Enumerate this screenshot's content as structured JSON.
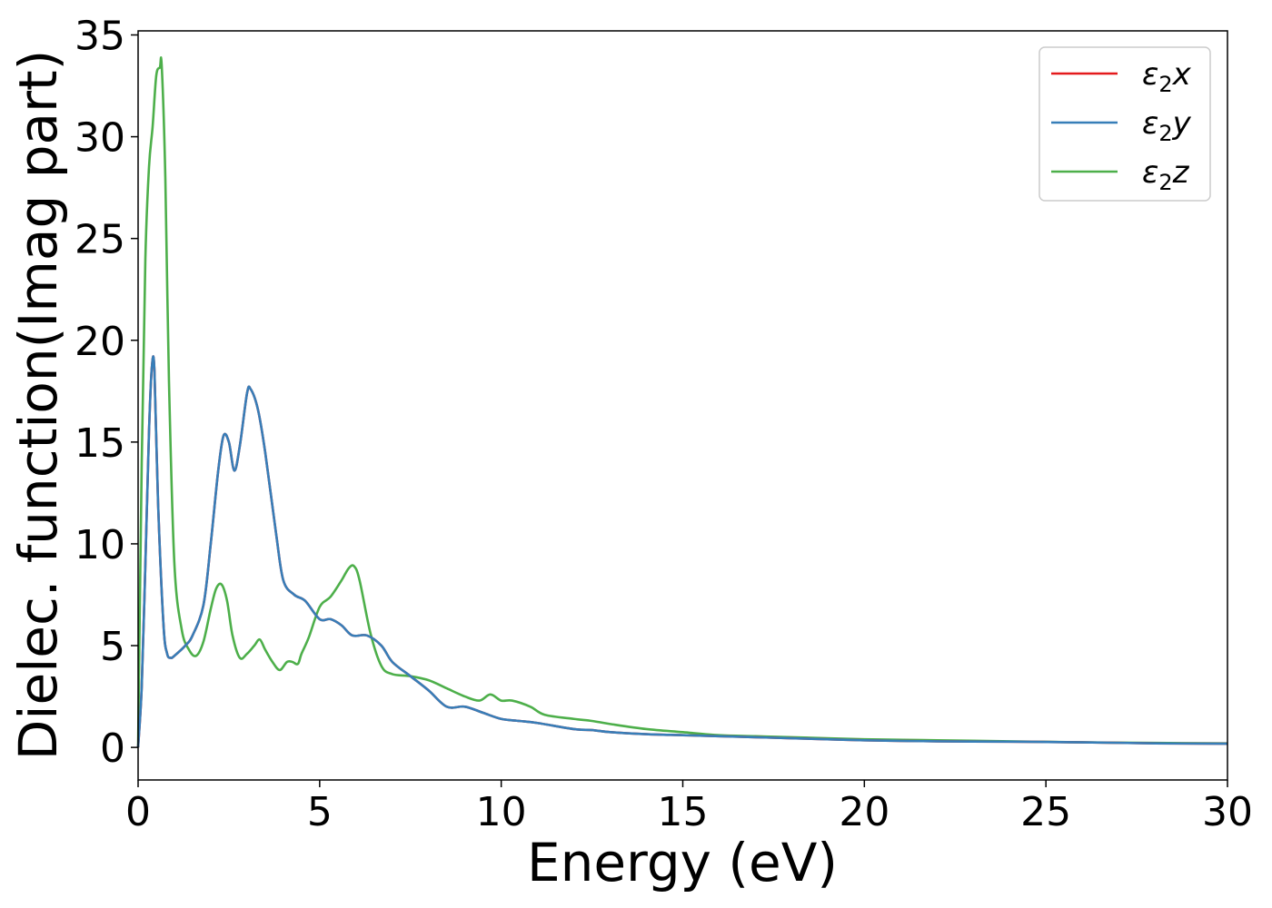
{
  "chart_data": {
    "type": "line",
    "xlabel": "Energy (eV)",
    "ylabel": "Dielec. function(Imag part)",
    "xlim": [
      0,
      30
    ],
    "ylim": [
      -1.6,
      35.2
    ],
    "xticks": [
      0,
      5,
      10,
      15,
      20,
      25,
      30
    ],
    "yticks": [
      0,
      5,
      10,
      15,
      20,
      25,
      30,
      35
    ],
    "grid": false,
    "legend_position": "top-right",
    "series": [
      {
        "name": "ε₂x",
        "legend_base": "ε",
        "legend_sub": "2",
        "legend_var": "x",
        "color": "#e41a1c",
        "x": [
          0,
          0.1,
          0.2,
          0.3,
          0.38,
          0.45,
          0.55,
          0.7,
          0.8,
          0.9,
          1.0,
          1.3,
          1.5,
          1.8,
          2.0,
          2.2,
          2.35,
          2.5,
          2.65,
          2.8,
          3.0,
          3.1,
          3.3,
          3.5,
          3.8,
          4.0,
          4.3,
          4.6,
          5.0,
          5.3,
          5.6,
          5.9,
          6.3,
          6.7,
          7.0,
          7.5,
          8.0,
          8.5,
          9.0,
          9.5,
          10.0,
          10.5,
          11.0,
          12.0,
          12.5,
          13.0,
          14.0,
          15.0,
          16.0,
          17.0,
          18.0,
          20.0,
          22.0,
          24.0,
          26.0,
          28.0,
          30.0
        ],
        "values": [
          0,
          3.0,
          9.0,
          15.5,
          18.7,
          18.5,
          12.0,
          6.0,
          4.6,
          4.4,
          4.5,
          5.0,
          5.5,
          7.0,
          10.0,
          13.5,
          15.3,
          15.0,
          13.6,
          14.8,
          17.4,
          17.6,
          16.6,
          14.5,
          10.5,
          8.2,
          7.5,
          7.2,
          6.3,
          6.3,
          6.0,
          5.5,
          5.5,
          5.0,
          4.2,
          3.5,
          2.8,
          2.0,
          2.0,
          1.7,
          1.4,
          1.3,
          1.2,
          0.9,
          0.85,
          0.75,
          0.65,
          0.6,
          0.55,
          0.5,
          0.45,
          0.35,
          0.3,
          0.28,
          0.25,
          0.2,
          0.18
        ]
      },
      {
        "name": "ε₂y",
        "legend_base": "ε",
        "legend_sub": "2",
        "legend_var": "y",
        "color": "#377eb8",
        "x": [
          0,
          0.1,
          0.2,
          0.3,
          0.38,
          0.45,
          0.55,
          0.7,
          0.8,
          0.9,
          1.0,
          1.3,
          1.5,
          1.8,
          2.0,
          2.2,
          2.35,
          2.5,
          2.65,
          2.8,
          3.0,
          3.1,
          3.3,
          3.5,
          3.8,
          4.0,
          4.3,
          4.6,
          5.0,
          5.3,
          5.6,
          5.9,
          6.3,
          6.7,
          7.0,
          7.5,
          8.0,
          8.5,
          9.0,
          9.5,
          10.0,
          10.5,
          11.0,
          12.0,
          12.5,
          13.0,
          14.0,
          15.0,
          16.0,
          17.0,
          18.0,
          20.0,
          22.0,
          24.0,
          26.0,
          28.0,
          30.0
        ],
        "values": [
          0,
          3.0,
          9.0,
          15.5,
          18.7,
          18.5,
          12.0,
          6.0,
          4.6,
          4.4,
          4.5,
          5.0,
          5.5,
          7.0,
          10.0,
          13.5,
          15.3,
          15.0,
          13.6,
          14.8,
          17.4,
          17.6,
          16.6,
          14.5,
          10.5,
          8.2,
          7.5,
          7.2,
          6.3,
          6.3,
          6.0,
          5.5,
          5.5,
          5.0,
          4.2,
          3.5,
          2.8,
          2.0,
          2.0,
          1.7,
          1.4,
          1.3,
          1.2,
          0.9,
          0.85,
          0.75,
          0.65,
          0.6,
          0.55,
          0.5,
          0.45,
          0.35,
          0.3,
          0.28,
          0.25,
          0.2,
          0.18
        ]
      },
      {
        "name": "ε₂z",
        "legend_base": "ε",
        "legend_sub": "2",
        "legend_var": "z",
        "color": "#4daf4a",
        "x": [
          0,
          0.1,
          0.2,
          0.3,
          0.4,
          0.5,
          0.6,
          0.65,
          0.75,
          0.85,
          1.0,
          1.2,
          1.4,
          1.6,
          1.8,
          2.0,
          2.15,
          2.3,
          2.45,
          2.6,
          2.8,
          3.0,
          3.2,
          3.35,
          3.5,
          3.7,
          3.9,
          4.1,
          4.25,
          4.4,
          4.5,
          4.7,
          5.0,
          5.3,
          5.6,
          5.8,
          5.95,
          6.1,
          6.4,
          6.7,
          7.0,
          7.5,
          8.0,
          8.5,
          9.0,
          9.4,
          9.7,
          10.0,
          10.3,
          10.8,
          11.2,
          12.0,
          12.5,
          13.0,
          14.0,
          15.0,
          16.0,
          17.0,
          18.0,
          20.0,
          22.0,
          24.0,
          26.0,
          28.0,
          30.0
        ],
        "values": [
          0,
          14.0,
          24.0,
          28.5,
          30.5,
          33.0,
          33.4,
          33.5,
          28.0,
          18.0,
          9.0,
          5.8,
          4.8,
          4.5,
          5.2,
          6.8,
          7.8,
          8.0,
          7.2,
          5.5,
          4.4,
          4.6,
          5.0,
          5.3,
          4.8,
          4.2,
          3.8,
          4.2,
          4.2,
          4.1,
          4.6,
          5.4,
          6.9,
          7.4,
          8.2,
          8.8,
          8.9,
          8.2,
          5.6,
          4.0,
          3.6,
          3.5,
          3.3,
          2.9,
          2.5,
          2.3,
          2.6,
          2.3,
          2.3,
          2.0,
          1.6,
          1.4,
          1.3,
          1.15,
          0.9,
          0.75,
          0.6,
          0.55,
          0.5,
          0.4,
          0.35,
          0.3,
          0.25,
          0.22,
          0.2
        ]
      }
    ]
  }
}
